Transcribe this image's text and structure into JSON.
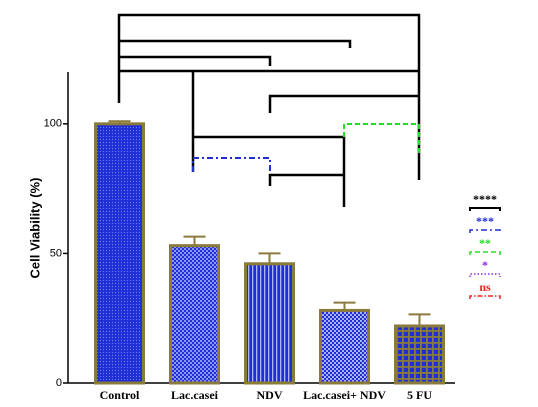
{
  "chart_data": {
    "type": "bar",
    "y_label": "Cell Viability (%)",
    "categories": [
      "Control",
      "Lac.casei",
      "NDV",
      "Lac.casei+ NDV",
      "5 FU"
    ],
    "values": [
      100,
      53,
      46,
      28,
      22
    ],
    "errors": [
      1,
      3.5,
      4,
      3,
      4.5
    ],
    "color": "#1f2fd6",
    "edge_color": "#8a7a3c",
    "ylim": [
      0,
      120
    ],
    "yticks": [
      0,
      50,
      100
    ],
    "significance_legend": [
      {
        "label": "****",
        "color": "#000000"
      },
      {
        "label": "***",
        "color": "#1f2fd6"
      },
      {
        "label": "**",
        "color": "#22dd22"
      },
      {
        "label": "*",
        "color": "#8a2be2"
      },
      {
        "label": "ns",
        "color": "#ee2222"
      }
    ]
  }
}
